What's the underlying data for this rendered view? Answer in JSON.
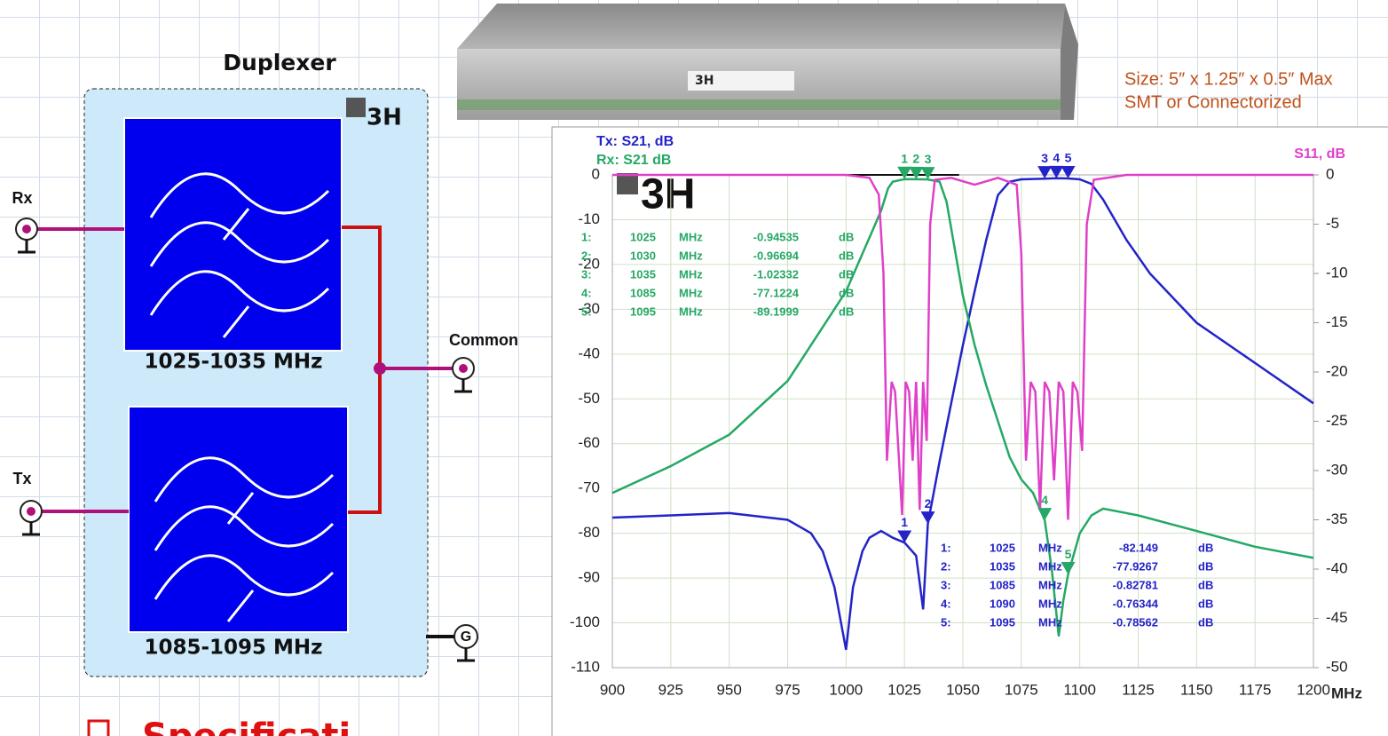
{
  "diagram": {
    "title": "Duplexer",
    "logo": "3H",
    "filters": [
      {
        "label": "1025-1035 MHz"
      },
      {
        "label": "1085-1095 MHz"
      }
    ],
    "ports": {
      "rx": "Rx",
      "tx": "Tx",
      "common": "Common",
      "ground": "G"
    }
  },
  "product": {
    "logo": "3H",
    "size": "Size: 5″ x 1.25″ x 0.5″ Max",
    "mounting": "SMT or Connectorized"
  },
  "footer": {
    "heading": "Specificati"
  },
  "chart_data": {
    "type": "line",
    "logo": "3H",
    "x_label": "MHz",
    "xlim": [
      900,
      1200
    ],
    "xticks": [
      900,
      925,
      950,
      975,
      1000,
      1025,
      1050,
      1075,
      1100,
      1125,
      1150,
      1175,
      1200
    ],
    "ylim": [
      -110,
      0
    ],
    "yticks": [
      0,
      -10,
      -20,
      -30,
      -40,
      -50,
      -60,
      -70,
      -80,
      -90,
      -100,
      -110
    ],
    "y2lim": [
      -50,
      0
    ],
    "y2ticks": [
      0,
      -5,
      -10,
      -15,
      -20,
      -25,
      -30,
      -35,
      -40,
      -45,
      -50
    ],
    "grid": true,
    "series": [
      {
        "name": "Tx: S21, dB",
        "color": "#2323c8",
        "x": [
          900,
          925,
          950,
          975,
          985,
          990,
          995,
          1000,
          1003,
          1007,
          1010,
          1015,
          1020,
          1025,
          1030,
          1033,
          1035,
          1040,
          1045,
          1050,
          1055,
          1060,
          1065,
          1070,
          1075,
          1085,
          1090,
          1095,
          1100,
          1105,
          1110,
          1120,
          1130,
          1150,
          1175,
          1200
        ],
        "values": [
          -76.5,
          -76,
          -75.5,
          -77,
          -80,
          -84,
          -92,
          -106,
          -92,
          -84,
          -81,
          -79.5,
          -81,
          -82.1,
          -85,
          -97,
          -77.9,
          -64,
          -51,
          -38,
          -26,
          -14.5,
          -4.5,
          -1.5,
          -1,
          -0.83,
          -0.76,
          -0.79,
          -1,
          -2,
          -5.5,
          -14.5,
          -22,
          -33,
          -42,
          -51
        ],
        "markers": [
          {
            "id": "1",
            "label": "1:",
            "freq": 1025,
            "unit": "MHz",
            "value": -82.149,
            "db": "dB"
          },
          {
            "id": "2",
            "label": "2:",
            "freq": 1035,
            "unit": "MHz",
            "value": -77.9267,
            "db": "dB"
          },
          {
            "id": "3",
            "label": "3:",
            "freq": 1085,
            "unit": "MHz",
            "value": -0.82781,
            "db": "dB"
          },
          {
            "id": "4",
            "label": "4:",
            "freq": 1090,
            "unit": "MHz",
            "value": -0.76344,
            "db": "dB"
          },
          {
            "id": "5",
            "label": "5:",
            "freq": 1095,
            "unit": "MHz",
            "value": -0.78562,
            "db": "dB"
          }
        ]
      },
      {
        "name": "Rx: S21 dB",
        "color": "#25a865",
        "x": [
          900,
          925,
          950,
          975,
          1000,
          1010,
          1015,
          1018,
          1020,
          1025,
          1030,
          1035,
          1040,
          1043,
          1046,
          1050,
          1055,
          1060,
          1065,
          1070,
          1075,
          1080,
          1085,
          1088,
          1091,
          1093,
          1095,
          1100,
          1105,
          1110,
          1125,
          1150,
          1175,
          1200
        ],
        "values": [
          -71,
          -65,
          -58,
          -46,
          -26,
          -14,
          -8,
          -3,
          -1.5,
          -0.95,
          -0.97,
          -1.02,
          -1.5,
          -6,
          -15,
          -27,
          -38,
          -47,
          -55,
          -63,
          -68,
          -71,
          -77.1,
          -88,
          -103,
          -95,
          -89.2,
          -80,
          -76,
          -74.5,
          -76,
          -79.5,
          -83,
          -85.5
        ],
        "markers": [
          {
            "id": "1",
            "label": "1:",
            "freq": 1025,
            "unit": "MHz",
            "value": -0.94535,
            "db": "dB"
          },
          {
            "id": "2",
            "label": "2:",
            "freq": 1030,
            "unit": "MHz",
            "value": -0.96694,
            "db": "dB"
          },
          {
            "id": "3",
            "label": "3:",
            "freq": 1035,
            "unit": "MHz",
            "value": -1.02332,
            "db": "dB"
          },
          {
            "id": "4",
            "label": "4:",
            "freq": 1085,
            "unit": "MHz",
            "value": -77.1224,
            "db": "dB"
          },
          {
            "id": "5",
            "label": "5:",
            "freq": 1095,
            "unit": "MHz",
            "value": -89.1999,
            "db": "dB"
          }
        ]
      },
      {
        "name": "S11, dB",
        "color": "#e040c8",
        "axis": "y2",
        "x": [
          900,
          1000,
          1010,
          1014,
          1016,
          1017.5,
          1019.5,
          1021,
          1024,
          1025.5,
          1027,
          1028.5,
          1030,
          1031.5,
          1033,
          1034.5,
          1036,
          1038,
          1045,
          1055,
          1065,
          1073,
          1075,
          1077,
          1079,
          1081,
          1083,
          1085,
          1087,
          1089,
          1091,
          1093,
          1095,
          1097,
          1099,
          1101,
          1103,
          1106,
          1120,
          1200
        ],
        "values": [
          0,
          0,
          -0.3,
          -2,
          -10,
          -29,
          -21,
          -22,
          -34.5,
          -21,
          -22,
          -29,
          -21,
          -34,
          -21,
          -27,
          -5,
          -0.5,
          -0.3,
          -1,
          -0.3,
          -1,
          -8,
          -29,
          -21,
          -22,
          -34,
          -21,
          -22,
          -31,
          -21,
          -22,
          -35,
          -21,
          -22,
          -28,
          -5,
          -0.5,
          0,
          0
        ]
      }
    ]
  }
}
